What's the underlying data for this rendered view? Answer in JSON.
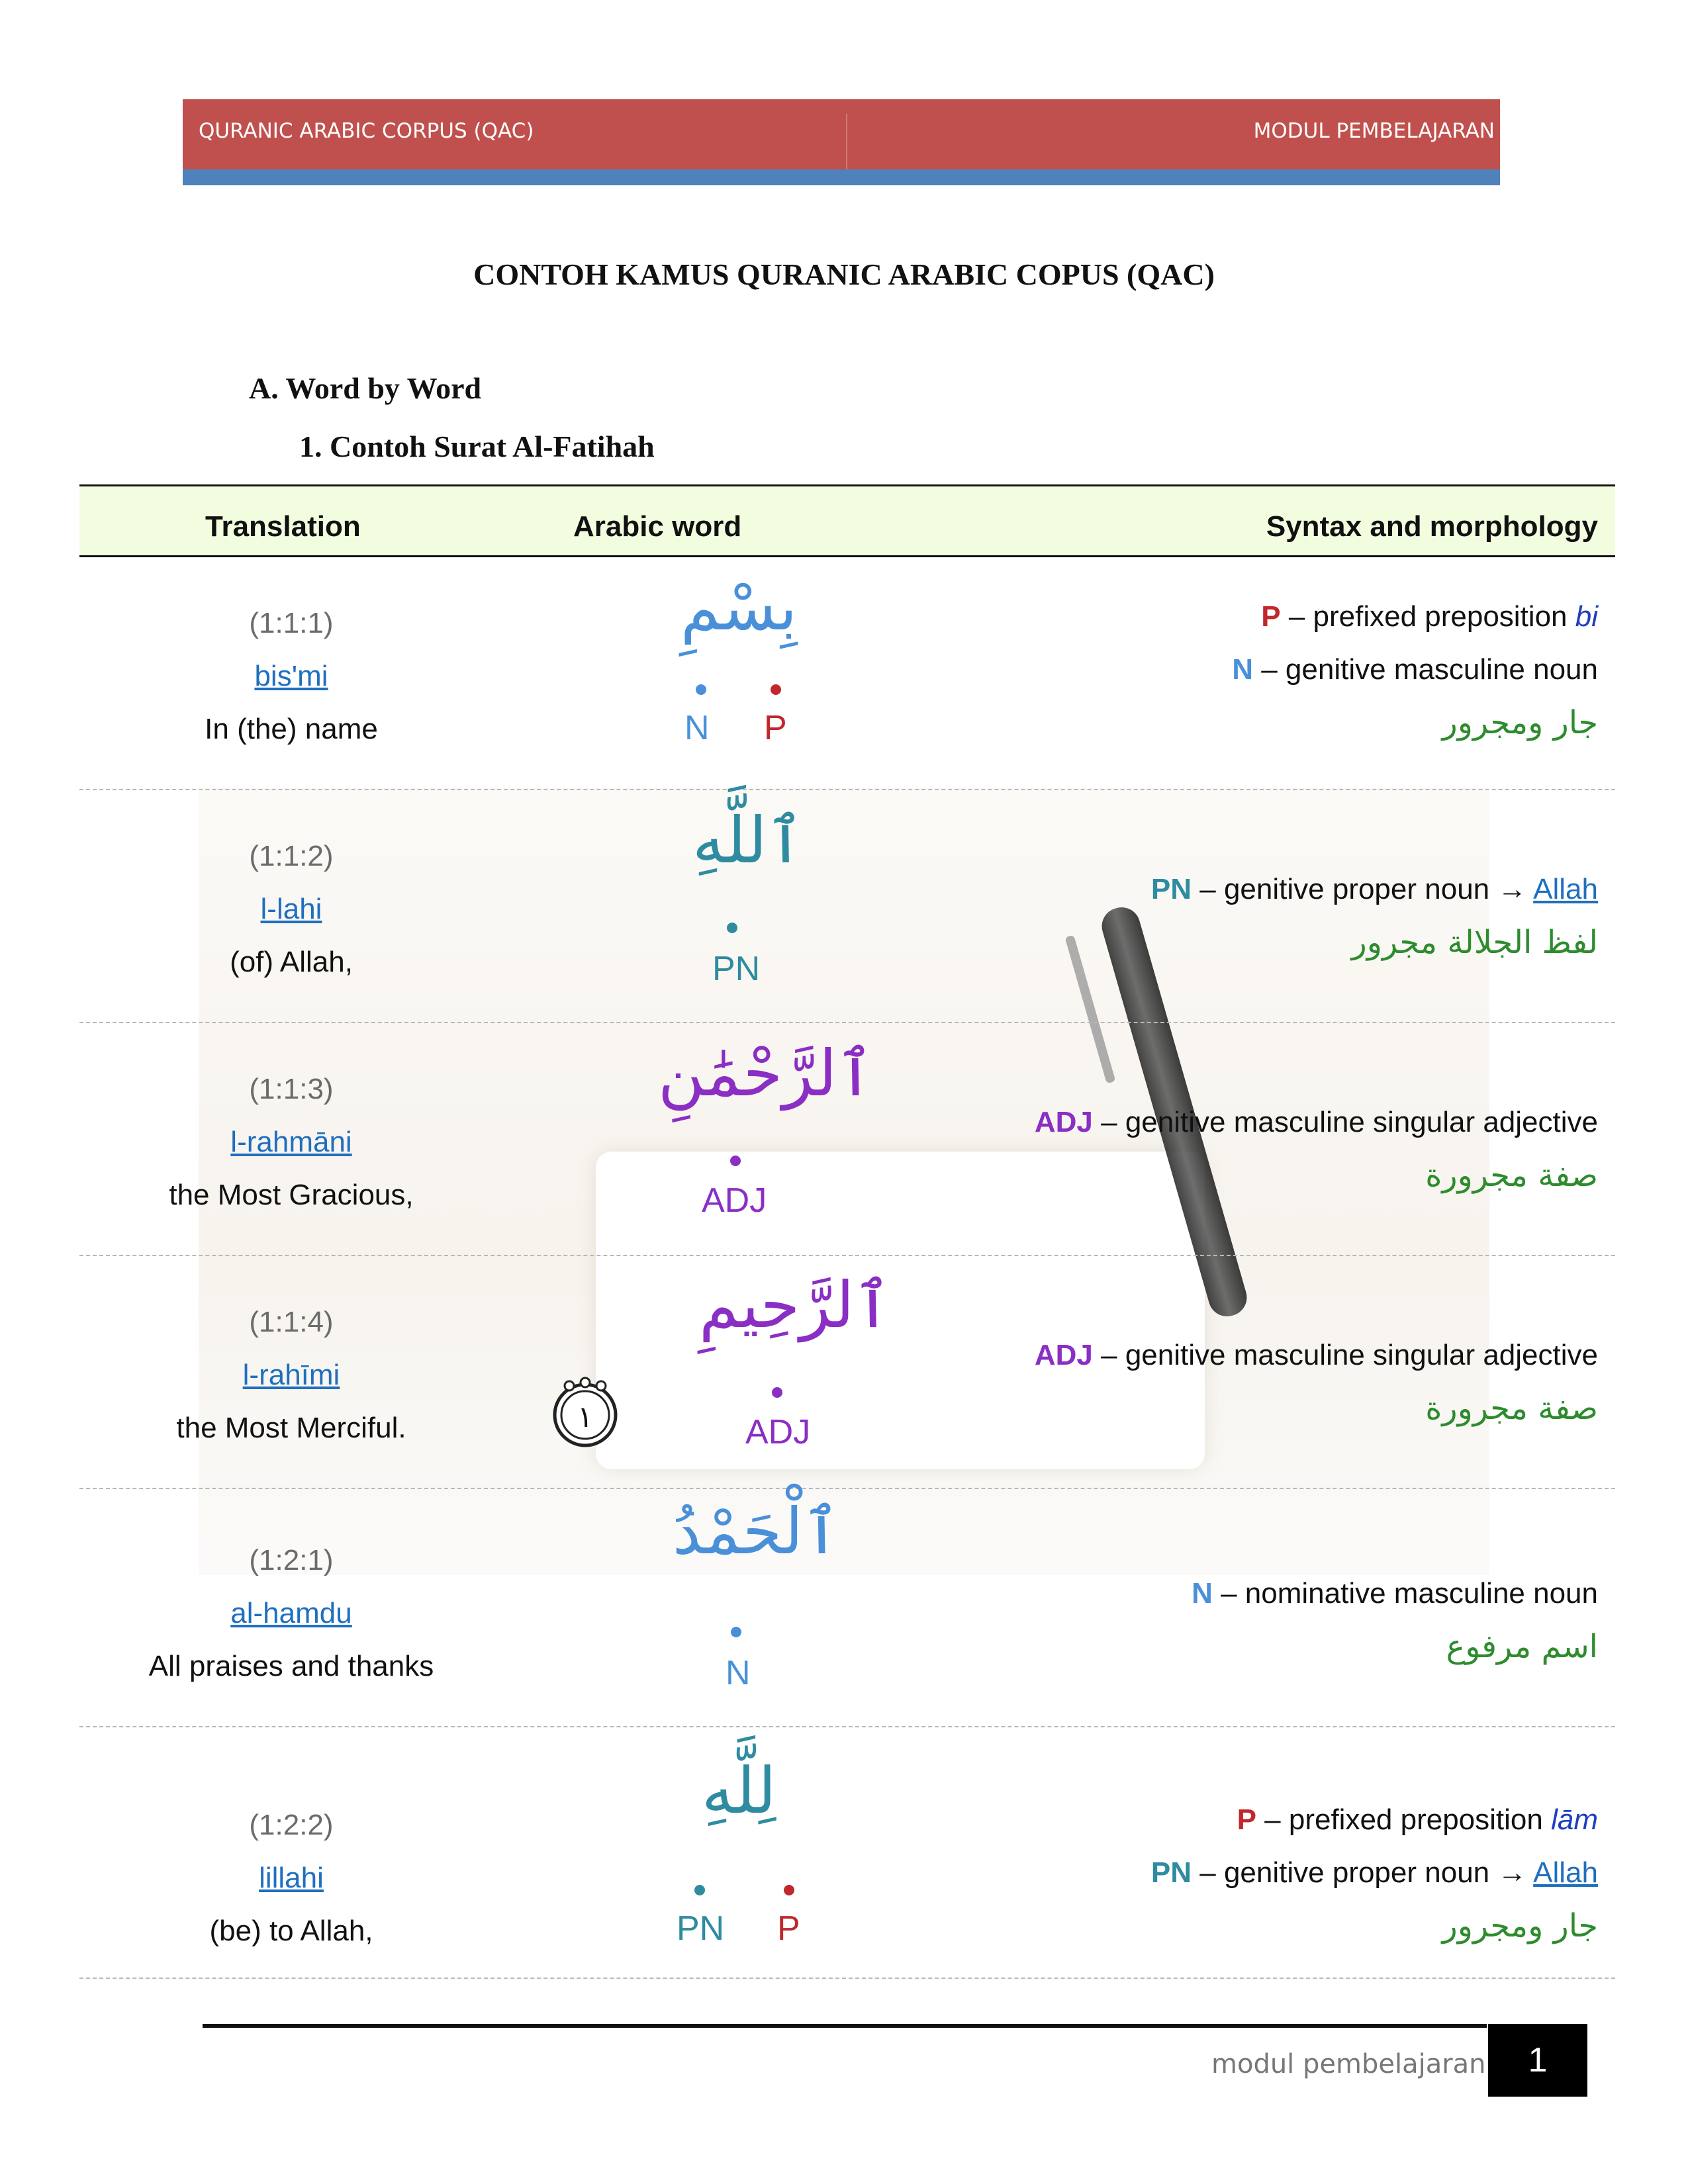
{
  "header": {
    "left": "QURANIC ARABIC CORPUS (QAC)",
    "right": "MODUL PEMBELAJARAN"
  },
  "title": "CONTOH KAMUS QURANIC ARABIC COPUS (QAC)",
  "section_a": "A.  Word by Word",
  "section_1": "1.  Contoh Surat Al-Fatihah",
  "table": {
    "headers": {
      "translation": "Translation",
      "arabic": "Arabic word",
      "syntax": "Syntax and morphology"
    },
    "rows": [
      {
        "loc": "(1:1:1)",
        "translit": "bis'mi",
        "english": "In (the) name",
        "arabic": "بِسْمِ",
        "tags": [
          "N",
          "P"
        ],
        "syntax": [
          {
            "tag": "P",
            "text": " – prefixed preposition ",
            "extra": "bi"
          },
          {
            "tag": "N",
            "text": " – genitive masculine noun"
          }
        ],
        "arabic_gloss": "جار ومجرور"
      },
      {
        "loc": "(1:1:2)",
        "translit": "l-lahi",
        "english": "(of) Allah,",
        "arabic": "ٱللَّهِ",
        "tags": [
          "PN"
        ],
        "syntax": [
          {
            "tag": "PN",
            "text": " – genitive proper noun → ",
            "link": "Allah"
          }
        ],
        "arabic_gloss": "لفظ الجلالة مجرور"
      },
      {
        "loc": "(1:1:3)",
        "translit": "l-rahmāni",
        "english": "the Most Gracious,",
        "arabic": "ٱلرَّحْمَٰنِ",
        "tags": [
          "ADJ"
        ],
        "syntax": [
          {
            "tag": "ADJ",
            "text": " – genitive masculine singular adjective"
          }
        ],
        "arabic_gloss": "صفة مجرورة"
      },
      {
        "loc": "(1:1:4)",
        "translit": "l-rahīmi",
        "english": "the Most Merciful.",
        "arabic": "ٱلرَّحِيمِ",
        "tags": [
          "ADJ"
        ],
        "ayah_number": "١",
        "syntax": [
          {
            "tag": "ADJ",
            "text": " – genitive masculine singular adjective"
          }
        ],
        "arabic_gloss": "صفة مجرورة"
      },
      {
        "loc": "(1:2:1)",
        "translit": "al-hamdu",
        "english": "All praises and thanks",
        "arabic": "ٱلْحَمْدُ",
        "tags": [
          "N"
        ],
        "syntax": [
          {
            "tag": "N",
            "text": " – nominative masculine noun"
          }
        ],
        "arabic_gloss": "اسم مرفوع"
      },
      {
        "loc": "(1:2:2)",
        "translit": "lillahi",
        "english": "(be) to Allah,",
        "arabic": "لِلَّهِ",
        "tags": [
          "PN",
          "P"
        ],
        "syntax": [
          {
            "tag": "P",
            "text": " – prefixed preposition ",
            "extra": "lām"
          },
          {
            "tag": "PN",
            "text": " – genitive proper noun → ",
            "link": "Allah"
          }
        ],
        "arabic_gloss": "جار ومجرور"
      }
    ]
  },
  "colors": {
    "N": "#4a90d9",
    "P": "#c0282d",
    "PN": "#2e8ba0",
    "ADJ": "#8a2ec4",
    "gloss": "#2e8b2e",
    "header_red": "#c0504d",
    "header_blue": "#4f81bd",
    "thead_bg": "#f2fde0"
  },
  "footer": {
    "text": "modul pembelajaran",
    "page": "1"
  }
}
